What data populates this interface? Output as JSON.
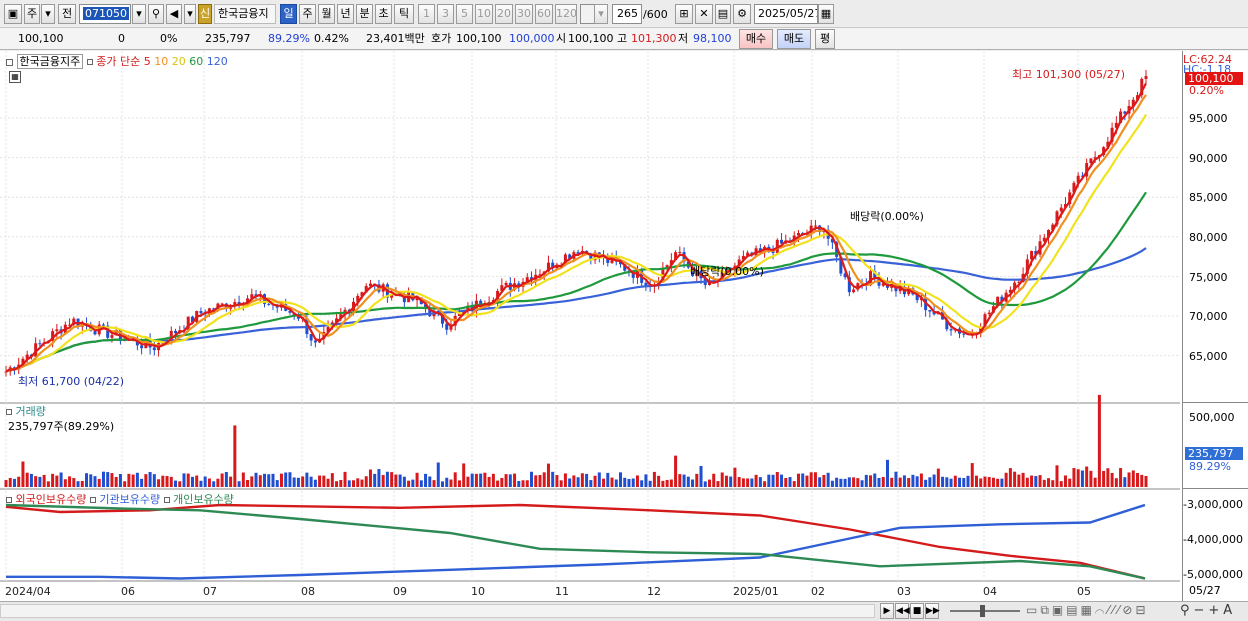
{
  "toolbar": {
    "market": "주",
    "prev": "전",
    "code": "071050",
    "shin": "신",
    "stock_name": "한국금융지",
    "periods": [
      "일",
      "주",
      "월",
      "년",
      "분",
      "초",
      "틱"
    ],
    "active_period": "일",
    "intervals": [
      "1",
      "3",
      "5",
      "10",
      "20",
      "30",
      "60",
      "120"
    ],
    "count": "265",
    "count_total": "/600",
    "date": "2025/05/27"
  },
  "quote": {
    "price": "100,100",
    "change": "0",
    "change_pct": "0%",
    "volume": "235,797",
    "turnover_pct": "89.29%",
    "ratio": "0.42%",
    "amount": "23,401백만",
    "hoga_label": "호가",
    "hoga": "100,100",
    "hoga2": "100,000",
    "open_label": "시",
    "open": "100,100",
    "high_label": "고",
    "high": "101,300",
    "low_label": "저",
    "low": "98,100",
    "buy": "매수",
    "sell": "매도",
    "eval": "평"
  },
  "price_panel": {
    "name": "한국금융지주",
    "ma_title": "종가 단순",
    "ma_periods": [
      "5",
      "10",
      "20",
      "60",
      "120"
    ],
    "ma_colors": [
      "#dd1a1a",
      "#f0901e",
      "#f2e21c",
      "#1e9a3c",
      "#3a62d8"
    ],
    "lc": "LC:62.24",
    "hc": "HC:-1.18",
    "last_price": "100,100",
    "last_pct": "0.20%",
    "high_note": "최고 101,300 (05/27)",
    "low_note": "최저 61,700 (04/22)",
    "div_note1": "배당락(0.00%)",
    "div_note2": "배당락(0.00%)",
    "y_ticks": [
      "95,000",
      "90,000",
      "85,000",
      "80,000",
      "75,000",
      "70,000",
      "65,000"
    ]
  },
  "volume_panel": {
    "title": "거래량",
    "value": "235,797주(89.29%)",
    "last": "235,797",
    "last_pct": "89.29%",
    "y_tick": "500,000"
  },
  "holding_panel": {
    "legends": [
      "외국인보유수량",
      "기관보유수량",
      "개인보유수량"
    ],
    "colors": [
      "#d41a1a",
      "#2f5fd6",
      "#2e8a55"
    ],
    "y_ticks": [
      "-3,000,000",
      "-4,000,000",
      "-5,000,000"
    ]
  },
  "x_axis": {
    "labels": [
      "2024/04",
      "06",
      "07",
      "08",
      "09",
      "10",
      "11",
      "12",
      "2025/01",
      "02",
      "03",
      "04",
      "05"
    ],
    "last": "05/27"
  }
}
